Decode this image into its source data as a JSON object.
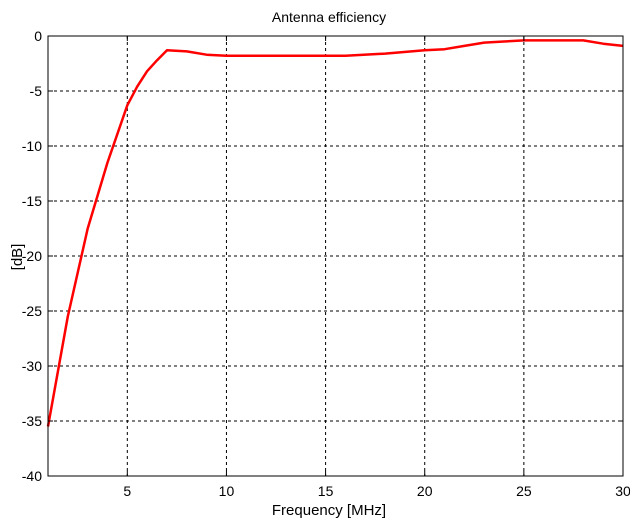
{
  "chart_data": {
    "type": "line",
    "title": "Antenna efficiency",
    "xlabel": "Frequency [MHz]",
    "ylabel": "[dB]",
    "xlim": [
      1,
      30
    ],
    "ylim": [
      -40,
      0
    ],
    "xticks": [
      5,
      10,
      15,
      20,
      25,
      30
    ],
    "yticks": [
      0,
      -5,
      -10,
      -15,
      -20,
      -25,
      -30,
      -35,
      -40
    ],
    "xtick_labels": [
      "5",
      "10",
      "15",
      "20",
      "25",
      "30"
    ],
    "ytick_labels": [
      "0",
      "-5",
      "-10",
      "-15",
      "-20",
      "-25",
      "-30",
      "-35",
      "-40"
    ],
    "grid": true,
    "series": [
      {
        "color": "#ff0000",
        "x": [
          1,
          2,
          3,
          4,
          5,
          5.5,
          6,
          6.5,
          7,
          8,
          9,
          10,
          12,
          14,
          16,
          18,
          20,
          21,
          22,
          23,
          24,
          25,
          26,
          27,
          28,
          29,
          30
        ],
        "y": [
          -35.5,
          -25.5,
          -17.5,
          -11.5,
          -6.3,
          -4.6,
          -3.2,
          -2.2,
          -1.3,
          -1.4,
          -1.7,
          -1.8,
          -1.8,
          -1.8,
          -1.8,
          -1.6,
          -1.3,
          -1.2,
          -0.9,
          -0.6,
          -0.5,
          -0.4,
          -0.4,
          -0.4,
          -0.4,
          -0.7,
          -0.9
        ]
      }
    ]
  }
}
